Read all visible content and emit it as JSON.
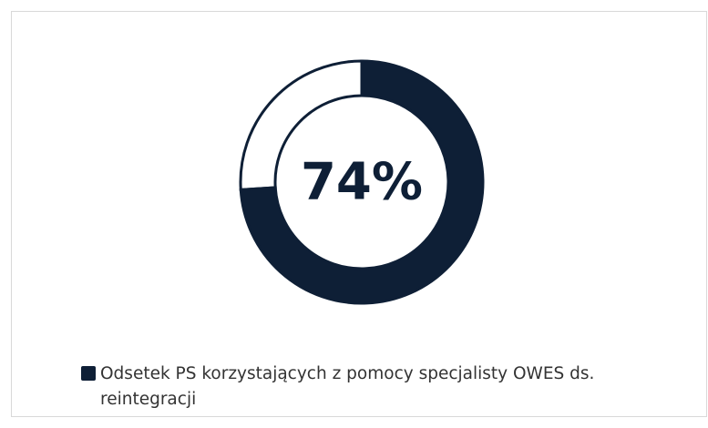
{
  "chart_data": {
    "type": "donut",
    "categories": [
      "Odsetek PS korzystających z pomocy specjalisty OWES ds. reintegracji",
      null
    ],
    "values": [
      74,
      26
    ],
    "value_labels": [
      "74%",
      null
    ],
    "colors": [
      "#0e1f36",
      "#ffffff"
    ],
    "legend": "bottom"
  }
}
